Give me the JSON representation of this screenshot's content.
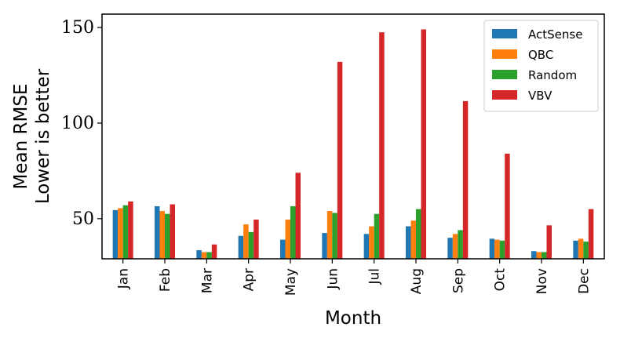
{
  "chart_data": {
    "type": "bar",
    "xlabel": "Month",
    "ylabel": [
      "Mean RMSE",
      "Lower is better"
    ],
    "ylim": [
      29,
      157
    ],
    "yticks": [
      50,
      100,
      150
    ],
    "categories": [
      "Jan",
      "Feb",
      "Mar",
      "Apr",
      "May",
      "Jun",
      "Jul",
      "Aug",
      "Sep",
      "Oct",
      "Nov",
      "Dec"
    ],
    "series": [
      {
        "name": "ActSense",
        "color": "#1f77b4",
        "values": [
          54.5,
          56.5,
          33.5,
          41.0,
          39.0,
          42.5,
          42.0,
          46.0,
          40.0,
          39.5,
          33.0,
          38.5
        ]
      },
      {
        "name": "QBC",
        "color": "#ff7f0e",
        "values": [
          55.5,
          54.0,
          32.5,
          47.0,
          49.5,
          54.0,
          46.0,
          49.0,
          42.0,
          39.0,
          32.5,
          39.5
        ]
      },
      {
        "name": "Random",
        "color": "#2ca02c",
        "values": [
          57.0,
          52.5,
          32.5,
          43.0,
          56.5,
          53.0,
          52.5,
          55.0,
          44.0,
          38.5,
          32.5,
          38.0
        ]
      },
      {
        "name": "VBV",
        "color": "#d62728",
        "values": [
          59.0,
          57.5,
          36.5,
          49.5,
          74.0,
          132.0,
          147.5,
          149.0,
          111.5,
          84.0,
          46.5,
          55.0
        ]
      }
    ],
    "legend_position": "top-right",
    "grid": false
  }
}
